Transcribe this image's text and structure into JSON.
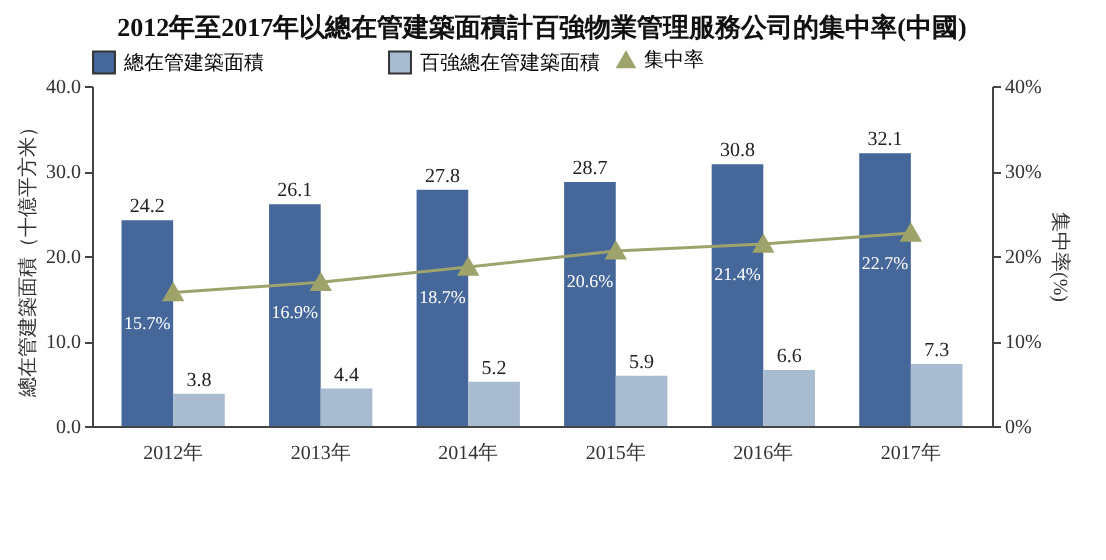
{
  "chart_data": {
    "type": "bar",
    "title": "2012年至2017年以總在管建築面積計百強物業管理服務公司的集中率(中國)",
    "categories": [
      "2012年",
      "2013年",
      "2014年",
      "2015年",
      "2016年",
      "2017年"
    ],
    "ylabel": "總在管建築面積（十億平方米）",
    "y2label": "集中率(%)",
    "ylim": [
      0,
      40
    ],
    "yticks": [
      {
        "value": 0,
        "label": "0.0"
      },
      {
        "value": 10,
        "label": "10.0"
      },
      {
        "value": 20,
        "label": "20.0"
      },
      {
        "value": 30,
        "label": "30.0"
      },
      {
        "value": 40,
        "label": "40.0"
      }
    ],
    "y2lim": [
      0,
      40
    ],
    "y2ticks": [
      {
        "value": 0,
        "label": "0%"
      },
      {
        "value": 10,
        "label": "10%"
      },
      {
        "value": 20,
        "label": "20%"
      },
      {
        "value": 30,
        "label": "30%"
      },
      {
        "value": 40,
        "label": "40%"
      }
    ],
    "legend": "top",
    "grid": false,
    "series": [
      {
        "name": "總在管建築面積",
        "color": "#46679a",
        "values": [
          24.2,
          26.1,
          27.8,
          28.7,
          30.8,
          32.1
        ],
        "value_labels": [
          "24.2",
          "26.1",
          "27.8",
          "28.7",
          "30.8",
          "32.1"
        ]
      },
      {
        "name": "百強總在管建築面積",
        "color": "#a9bbd0",
        "values": [
          3.8,
          4.4,
          5.2,
          5.9,
          6.6,
          7.3
        ],
        "value_labels": [
          "3.8",
          "4.4",
          "5.2",
          "5.9",
          "6.6",
          "7.3"
        ]
      },
      {
        "name": "集中率",
        "type": "line",
        "axis": "y2",
        "color": "#9da36a",
        "marker": "triangle",
        "values": [
          15.7,
          16.9,
          18.7,
          20.6,
          21.4,
          22.7
        ],
        "value_labels": [
          "15.7%",
          "16.9%",
          "18.7%",
          "20.6%",
          "21.4%",
          "22.7%"
        ]
      }
    ]
  }
}
